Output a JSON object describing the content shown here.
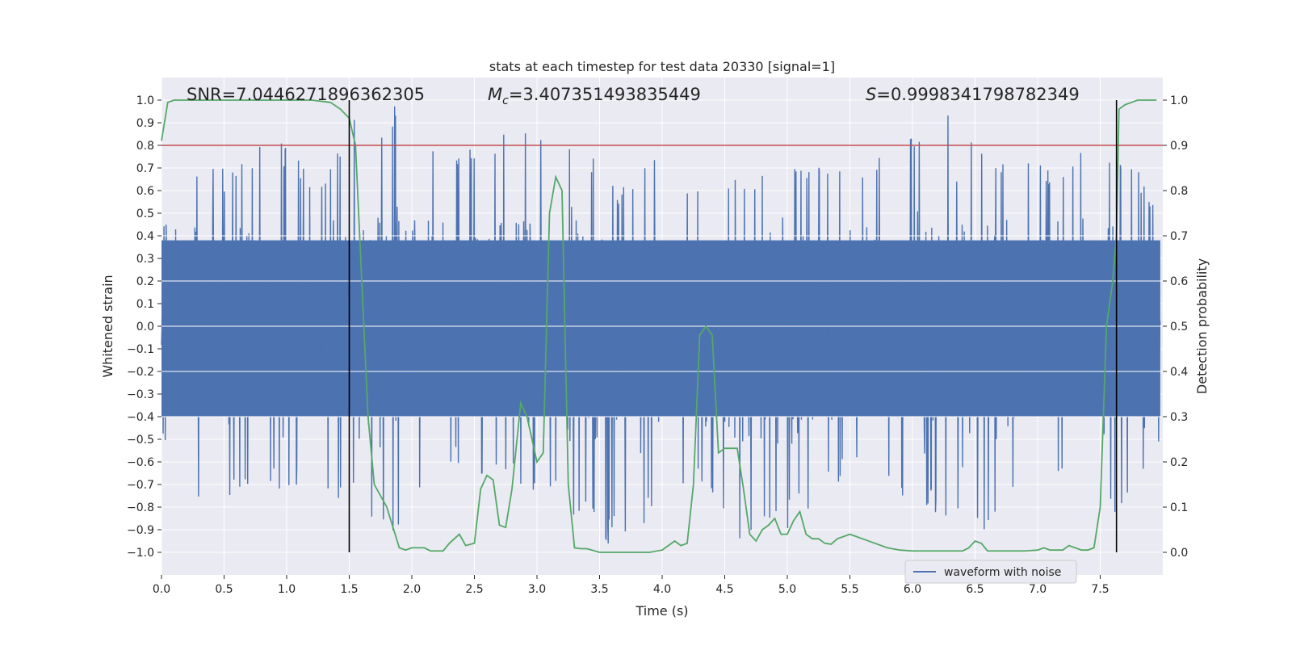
{
  "chart_data": {
    "type": "line",
    "title": "stats at each timestep for test data 20330 [signal=1]",
    "xlabel": "Time (s)",
    "ylabel": "Whitened strain",
    "y2label": "Detection probability",
    "xlim": [
      0.0,
      8.0
    ],
    "ylim": [
      -1.1,
      1.1
    ],
    "y2lim": [
      -0.05,
      1.05
    ],
    "xticks": [
      "0.0",
      "0.5",
      "1.0",
      "1.5",
      "2.0",
      "2.5",
      "3.0",
      "3.5",
      "4.0",
      "4.5",
      "5.0",
      "5.5",
      "6.0",
      "6.5",
      "7.0",
      "7.5"
    ],
    "yticks": [
      "1.0",
      "0.9",
      "0.8",
      "0.7",
      "0.6",
      "0.5",
      "0.4",
      "0.3",
      "0.2",
      "0.1",
      "0.0",
      "−0.1",
      "−0.2",
      "−0.3",
      "−0.4",
      "−0.5",
      "−0.6",
      "−0.7",
      "−0.8",
      "−0.9",
      "−1.0"
    ],
    "y2ticks": [
      "1.0",
      "0.9",
      "0.8",
      "0.7",
      "0.6",
      "0.5",
      "0.4",
      "0.3",
      "0.2",
      "0.1",
      "0.0"
    ],
    "annotations": {
      "snr": "SNR=7.0446271896362305",
      "mc_symbol": "M",
      "mc_sub": "c",
      "mc_value": "=3.407351493835449",
      "s_symbol": "S",
      "s_value": "=0.9998341798782349"
    },
    "threshold_line": {
      "y2": 0.9,
      "color": "#c44e52"
    },
    "vertical_lines": [
      1.5,
      7.63
    ],
    "series": [
      {
        "name": "waveform with noise",
        "axis": "left",
        "color": "#4c72b0",
        "envelope_peaks": [
          [
            0.05,
            0.84,
            -0.52
          ],
          [
            0.2,
            0.62,
            -0.62
          ],
          [
            0.35,
            0.7,
            -0.85
          ],
          [
            0.5,
            0.7,
            -0.81
          ],
          [
            0.7,
            0.79,
            -0.75
          ],
          [
            1.0,
            0.83,
            -0.72
          ],
          [
            1.3,
            0.62,
            -0.72
          ],
          [
            1.5,
            0.95,
            -0.8
          ],
          [
            1.95,
            0.98,
            -0.95
          ],
          [
            2.2,
            0.75,
            -0.6
          ],
          [
            2.55,
            0.82,
            -0.66
          ],
          [
            2.8,
            0.92,
            -0.7
          ],
          [
            3.2,
            0.92,
            -0.8
          ],
          [
            3.65,
            0.62,
            -1.0
          ],
          [
            4.0,
            0.78,
            -0.78
          ],
          [
            4.3,
            0.6,
            -0.72
          ],
          [
            4.55,
            0.65,
            -1.0
          ],
          [
            5.0,
            0.7,
            -0.9
          ],
          [
            5.5,
            0.72,
            -0.65
          ],
          [
            6.2,
            0.98,
            -0.85
          ],
          [
            6.6,
            0.78,
            -0.96
          ],
          [
            7.0,
            0.72,
            -0.7
          ],
          [
            7.3,
            0.78,
            -0.7
          ],
          [
            7.5,
            0.75,
            -0.88
          ],
          [
            7.8,
            0.72,
            -0.78
          ],
          [
            7.95,
            0.5,
            -0.55
          ]
        ]
      },
      {
        "name": "",
        "axis": "right",
        "color": "#55a868",
        "x": [
          0.0,
          0.05,
          0.1,
          0.2,
          0.4,
          0.6,
          0.8,
          1.0,
          1.2,
          1.35,
          1.43,
          1.5,
          1.55,
          1.6,
          1.65,
          1.7,
          1.8,
          1.9,
          1.95,
          2.0,
          2.05,
          2.1,
          2.15,
          2.2,
          2.25,
          2.3,
          2.38,
          2.43,
          2.5,
          2.55,
          2.6,
          2.65,
          2.7,
          2.75,
          2.8,
          2.87,
          2.92,
          3.0,
          3.05,
          3.1,
          3.15,
          3.2,
          3.25,
          3.3,
          3.35,
          3.4,
          3.5,
          3.7,
          3.9,
          4.0,
          4.05,
          4.1,
          4.15,
          4.2,
          4.25,
          4.3,
          4.35,
          4.4,
          4.45,
          4.5,
          4.55,
          4.6,
          4.65,
          4.7,
          4.75,
          4.8,
          4.85,
          4.9,
          4.95,
          5.0,
          5.05,
          5.1,
          5.15,
          5.2,
          5.25,
          5.3,
          5.35,
          5.4,
          5.5,
          5.55,
          5.6,
          5.7,
          5.8,
          5.9,
          6.0,
          6.1,
          6.2,
          6.3,
          6.4,
          6.45,
          6.5,
          6.55,
          6.6,
          6.7,
          6.8,
          6.9,
          7.0,
          7.05,
          7.1,
          7.2,
          7.25,
          7.3,
          7.35,
          7.4,
          7.45,
          7.5,
          7.55,
          7.6,
          7.63,
          7.65,
          7.7,
          7.75,
          7.8,
          7.9,
          7.95
        ],
        "values": [
          0.91,
          0.995,
          1.0,
          1.0,
          1.0,
          1.0,
          1.0,
          1.0,
          1.0,
          0.995,
          0.98,
          0.96,
          0.9,
          0.6,
          0.3,
          0.15,
          0.1,
          0.01,
          0.005,
          0.01,
          0.01,
          0.01,
          0.003,
          0.003,
          0.003,
          0.02,
          0.04,
          0.015,
          0.02,
          0.14,
          0.17,
          0.16,
          0.06,
          0.055,
          0.14,
          0.33,
          0.3,
          0.2,
          0.22,
          0.75,
          0.83,
          0.8,
          0.15,
          0.01,
          0.008,
          0.008,
          0.0,
          0.0,
          0.0,
          0.005,
          0.015,
          0.025,
          0.015,
          0.02,
          0.15,
          0.48,
          0.5,
          0.48,
          0.22,
          0.23,
          0.23,
          0.23,
          0.14,
          0.04,
          0.025,
          0.05,
          0.06,
          0.075,
          0.04,
          0.04,
          0.07,
          0.09,
          0.04,
          0.03,
          0.03,
          0.02,
          0.018,
          0.03,
          0.04,
          0.035,
          0.03,
          0.02,
          0.01,
          0.005,
          0.003,
          0.003,
          0.003,
          0.003,
          0.003,
          0.01,
          0.025,
          0.02,
          0.003,
          0.003,
          0.003,
          0.003,
          0.005,
          0.01,
          0.005,
          0.005,
          0.015,
          0.01,
          0.005,
          0.005,
          0.01,
          0.1,
          0.5,
          0.6,
          0.7,
          0.98,
          0.99,
          0.995,
          1.0,
          1.0,
          1.0
        ]
      }
    ],
    "legend": {
      "position": "lower-right"
    },
    "grid": true
  }
}
